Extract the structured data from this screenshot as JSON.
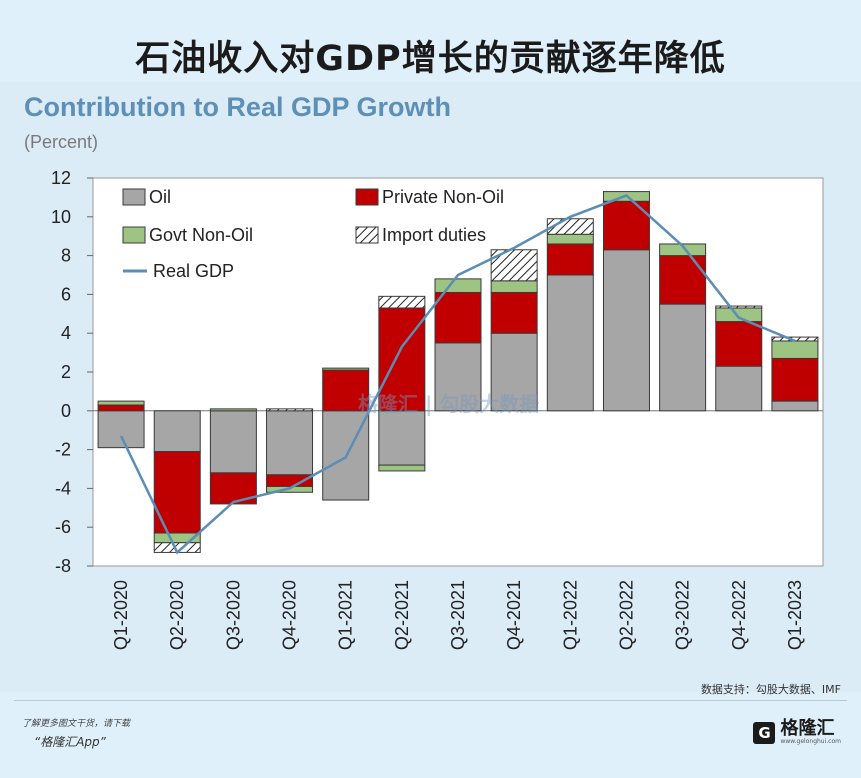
{
  "headline": "石油收入对GDP增长的贡献逐年降低",
  "chart_data": {
    "type": "bar",
    "title": "Contribution to Real GDP Growth",
    "subtitle": "(Percent)",
    "xlabel": "",
    "ylabel": "",
    "ylim": [
      -8,
      12
    ],
    "yticks": [
      12,
      10,
      8,
      6,
      4,
      2,
      0,
      -2,
      -4,
      -6,
      -8
    ],
    "categories": [
      "Q1-2020",
      "Q2-2020",
      "Q3-2020",
      "Q4-2020",
      "Q1-2021",
      "Q2-2021",
      "Q3-2021",
      "Q4-2021",
      "Q1-2022",
      "Q2-2022",
      "Q3-2022",
      "Q4-2022",
      "Q1-2023"
    ],
    "series": [
      {
        "name": "Oil",
        "key": "oil",
        "color": "#a6a6a6",
        "values": [
          -1.9,
          -2.1,
          -3.2,
          -3.3,
          -4.6,
          -2.8,
          3.5,
          4.0,
          7.0,
          8.3,
          5.5,
          2.3,
          0.5
        ]
      },
      {
        "name": "Private Non-Oil",
        "key": "private",
        "color": "#c00000",
        "values": [
          0.3,
          -4.2,
          -1.6,
          -0.6,
          2.1,
          5.3,
          2.6,
          2.1,
          1.6,
          2.5,
          2.5,
          2.3,
          2.2
        ]
      },
      {
        "name": "Govt Non-Oil",
        "key": "govt",
        "color": "#9dc483",
        "values": [
          0.2,
          -0.5,
          0.1,
          -0.3,
          0.1,
          -0.3,
          0.7,
          0.6,
          0.5,
          0.5,
          0.6,
          0.7,
          0.9
        ]
      },
      {
        "name": "Import duties",
        "key": "import",
        "color": "#ffffff",
        "values": [
          0.0,
          -0.5,
          0.0,
          0.1,
          0.0,
          0.6,
          0.0,
          1.6,
          0.8,
          0.0,
          0.0,
          0.1,
          0.2
        ]
      }
    ],
    "line": {
      "name": "Real GDP",
      "color": "#5b8db5",
      "values": [
        -1.3,
        -7.3,
        -4.7,
        -4.0,
        -2.4,
        3.3,
        7.0,
        8.4,
        10.0,
        11.1,
        8.5,
        4.8,
        3.6
      ]
    },
    "legend": "top-left, inside"
  },
  "watermark": "格隆汇 | 勾股大数据",
  "footer": {
    "source": "数据支持：勾股大数据、IMF",
    "promo_line1": "了解更多图文干货，请下载",
    "promo_line2": "“格隆汇App”",
    "brand_icon": "G",
    "brand_name": "格隆汇",
    "brand_url": "www.gelonghui.com"
  }
}
